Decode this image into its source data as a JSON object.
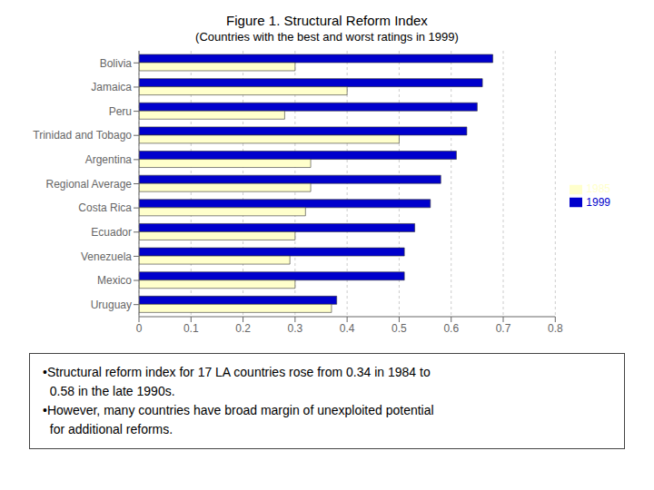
{
  "chart_data": {
    "type": "bar",
    "orientation": "horizontal",
    "title": "Figure 1.  Structural Reform Index",
    "subtitle": "(Countries with the best and worst ratings in 1999)",
    "categories": [
      "Bolivia",
      "Jamaica",
      "Peru",
      "Trinidad and Tobago",
      "Argentina",
      "Regional Average",
      "Costa Rica",
      "Ecuador",
      "Venezuela",
      "Mexico",
      "Uruguay"
    ],
    "series": [
      {
        "name": "1999",
        "color": "#0000CC",
        "values": [
          0.68,
          0.66,
          0.65,
          0.63,
          0.61,
          0.58,
          0.56,
          0.53,
          0.51,
          0.51,
          0.38
        ]
      },
      {
        "name": "1985",
        "color": "#FFFFCC",
        "values": [
          0.3,
          0.4,
          0.28,
          0.5,
          0.33,
          0.33,
          0.32,
          0.3,
          0.29,
          0.3,
          0.37
        ]
      }
    ],
    "xlim": [
      0,
      0.8
    ],
    "xticks": [
      0,
      0.1,
      0.2,
      0.3,
      0.4,
      0.5,
      0.6,
      0.7,
      0.8
    ],
    "grid": true,
    "legend": "right",
    "annotations": [
      "•Structural reform index for 17 LA countries rose from 0.34 in 1984 to\n  0.58 in the late 1990s.",
      "•However, many countries have broad margin of unexploited potential\n  for additional reforms."
    ]
  }
}
